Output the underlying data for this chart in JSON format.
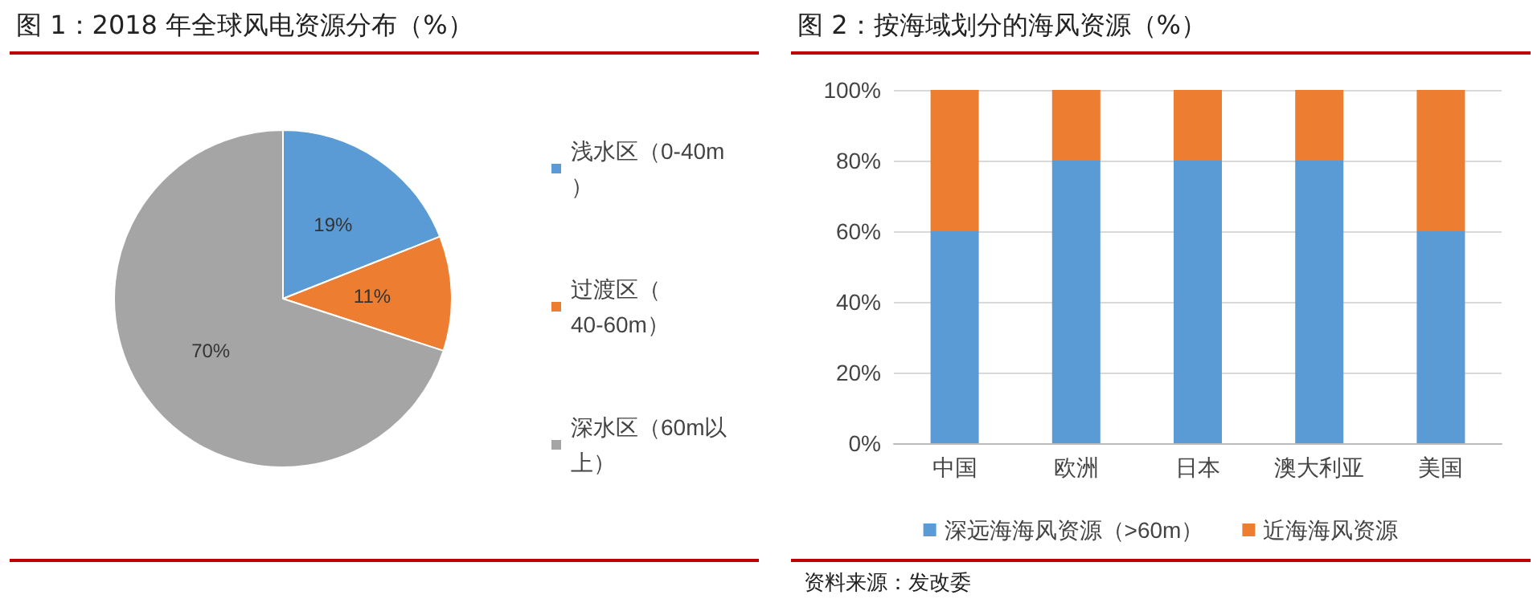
{
  "chart_data": [
    {
      "type": "pie",
      "title": "图 1：2018 年全球风电资源分布（%）",
      "categories": [
        "浅水区（0-40m）",
        "过渡区（40-60m）",
        "深水区（60m以上）"
      ],
      "values": [
        19,
        11,
        70
      ],
      "colors": [
        "#5b9bd5",
        "#ed7d31",
        "#a5a5a5"
      ],
      "value_labels": [
        "19%",
        "11%",
        "70%"
      ],
      "legend": "right"
    },
    {
      "type": "bar",
      "title": "图 2：按海域划分的海风资源（%）",
      "categories": [
        "中国",
        "欧洲",
        "日本",
        "澳大利亚",
        "美国"
      ],
      "series": [
        {
          "name": "深远海海风资源（>60m）",
          "color": "#5b9bd5",
          "values": [
            60,
            80,
            80,
            80,
            60
          ]
        },
        {
          "name": "近海海风资源",
          "color": "#ed7d31",
          "values": [
            40,
            20,
            20,
            20,
            40
          ]
        }
      ],
      "stacked": true,
      "ylim": [
        0,
        100
      ],
      "yticks": [
        {
          "value": 0,
          "label": "0%"
        },
        {
          "value": 20,
          "label": "20%"
        },
        {
          "value": 40,
          "label": "40%"
        },
        {
          "value": 60,
          "label": "60%"
        },
        {
          "value": 80,
          "label": "80%"
        },
        {
          "value": 100,
          "label": "100%"
        }
      ],
      "grid": "y",
      "legend": "bottom",
      "annotations": [
        "资料来源：发改委"
      ]
    }
  ]
}
